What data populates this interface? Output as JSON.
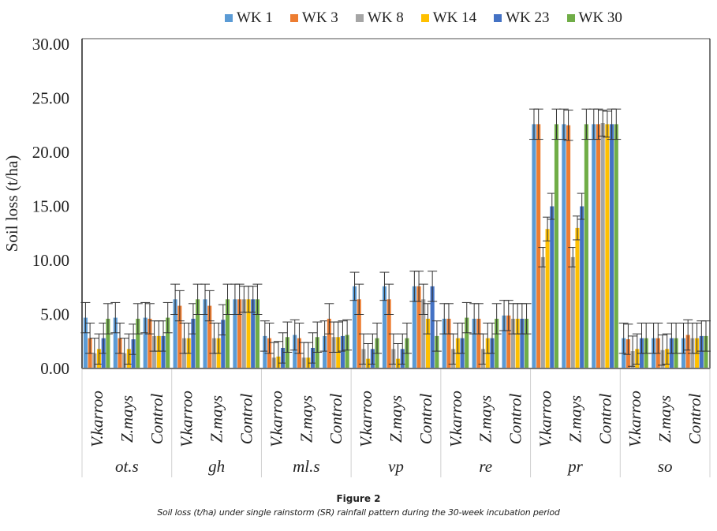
{
  "chart_data": {
    "type": "bar",
    "title": "",
    "xlabel": "",
    "ylabel": "Soil loss (t/ha)",
    "ylim": [
      0,
      30
    ],
    "yticks": [
      "0.00",
      "5.00",
      "10.00",
      "15.00",
      "20.00",
      "25.00",
      "30.00"
    ],
    "ytick_values": [
      0,
      5,
      10,
      15,
      20,
      25,
      30
    ],
    "grid": false,
    "legend_position": "top",
    "groups": [
      "ot.s",
      "gh",
      "ml.s",
      "vp",
      "re",
      "pr",
      "so"
    ],
    "subcategories": [
      "V.karroo",
      "Z.mays",
      "Control"
    ],
    "series": [
      {
        "name": "WK 1",
        "color": "#5b9bd5",
        "values": [
          [
            4.7,
            4.7,
            4.7
          ],
          [
            6.4,
            6.4,
            6.4
          ],
          [
            3.0,
            3.1,
            3.0
          ],
          [
            7.6,
            7.6,
            7.6
          ],
          [
            4.6,
            4.6,
            4.9
          ],
          [
            22.6,
            22.6,
            22.6
          ],
          [
            2.8,
            2.8,
            2.8
          ]
        ],
        "errors": [
          [
            1.4,
            1.4,
            1.4
          ],
          [
            1.4,
            1.4,
            1.4
          ],
          [
            1.4,
            1.4,
            1.4
          ],
          [
            1.3,
            1.3,
            1.4
          ],
          [
            1.4,
            1.4,
            1.4
          ],
          [
            1.4,
            1.4,
            1.4
          ],
          [
            1.4,
            1.4,
            1.4
          ]
        ]
      },
      {
        "name": "WK 3",
        "color": "#ed7d31",
        "values": [
          [
            2.8,
            2.8,
            4.6
          ],
          [
            5.8,
            5.8,
            6.4
          ],
          [
            2.8,
            2.8,
            4.6
          ],
          [
            6.4,
            6.4,
            7.6
          ],
          [
            4.6,
            4.6,
            4.9
          ],
          [
            22.6,
            22.5,
            22.6
          ],
          [
            2.7,
            2.8,
            3.1
          ]
        ],
        "errors": [
          [
            1.4,
            1.4,
            1.4
          ],
          [
            1.4,
            1.4,
            1.4
          ],
          [
            1.4,
            1.4,
            1.4
          ],
          [
            1.4,
            1.4,
            1.4
          ],
          [
            1.4,
            1.4,
            1.4
          ],
          [
            1.4,
            1.4,
            1.4
          ],
          [
            1.4,
            1.4,
            1.4
          ]
        ]
      },
      {
        "name": "WK 8",
        "color": "#a5a5a5",
        "values": [
          [
            1.4,
            1.4,
            3.0
          ],
          [
            2.8,
            2.8,
            6.4
          ],
          [
            1.0,
            1.0,
            2.9
          ],
          [
            1.8,
            1.8,
            6.4
          ],
          [
            1.8,
            1.8,
            4.6
          ],
          [
            10.3,
            10.3,
            22.7
          ],
          [
            1.6,
            1.7,
            2.8
          ]
        ],
        "errors": [
          [
            1.4,
            1.4,
            1.4
          ],
          [
            1.4,
            1.4,
            1.2
          ],
          [
            1.4,
            1.4,
            1.4
          ],
          [
            1.4,
            1.4,
            1.4
          ],
          [
            1.4,
            1.4,
            1.4
          ],
          [
            0.9,
            0.9,
            1.2
          ],
          [
            1.4,
            1.4,
            1.4
          ]
        ]
      },
      {
        "name": "WK 14",
        "color": "#ffc000",
        "values": [
          [
            1.8,
            1.8,
            3.0
          ],
          [
            2.8,
            2.8,
            6.4
          ],
          [
            1.1,
            1.0,
            2.9
          ],
          [
            0.9,
            0.9,
            4.6
          ],
          [
            2.8,
            2.8,
            4.6
          ],
          [
            12.9,
            13.0,
            22.6
          ],
          [
            1.8,
            1.8,
            2.8
          ]
        ],
        "errors": [
          [
            1.4,
            1.4,
            1.4
          ],
          [
            1.4,
            1.4,
            1.2
          ],
          [
            1.4,
            1.4,
            1.4
          ],
          [
            1.4,
            1.4,
            1.4
          ],
          [
            1.4,
            1.4,
            1.4
          ],
          [
            1.1,
            1.1,
            1.2
          ],
          [
            1.4,
            1.4,
            1.4
          ]
        ]
      },
      {
        "name": "WK 23",
        "color": "#4472c4",
        "values": [
          [
            2.8,
            2.7,
            3.0
          ],
          [
            4.6,
            4.5,
            6.4
          ],
          [
            1.9,
            1.9,
            3.0
          ],
          [
            1.8,
            1.8,
            7.6
          ],
          [
            2.8,
            2.8,
            4.6
          ],
          [
            15.0,
            15.0,
            22.6
          ],
          [
            2.8,
            2.8,
            3.0
          ]
        ],
        "errors": [
          [
            1.4,
            1.4,
            1.4
          ],
          [
            1.4,
            1.4,
            1.2
          ],
          [
            1.4,
            1.4,
            1.4
          ],
          [
            1.4,
            1.4,
            1.4
          ],
          [
            1.4,
            1.4,
            1.4
          ],
          [
            1.2,
            1.2,
            1.4
          ],
          [
            1.4,
            1.4,
            1.4
          ]
        ]
      },
      {
        "name": "WK 30",
        "color": "#70ad47",
        "values": [
          [
            4.6,
            4.6,
            4.7
          ],
          [
            6.4,
            6.4,
            6.4
          ],
          [
            2.9,
            2.9,
            3.1
          ],
          [
            2.8,
            2.8,
            3.0
          ],
          [
            4.7,
            4.6,
            4.6
          ],
          [
            22.6,
            22.6,
            22.6
          ],
          [
            2.8,
            2.8,
            3.0
          ]
        ],
        "errors": [
          [
            1.4,
            1.4,
            1.4
          ],
          [
            1.4,
            1.4,
            1.4
          ],
          [
            1.4,
            1.4,
            1.4
          ],
          [
            1.4,
            1.4,
            1.4
          ],
          [
            1.4,
            1.4,
            1.4
          ],
          [
            1.4,
            1.4,
            1.4
          ],
          [
            1.4,
            1.4,
            1.4
          ]
        ]
      }
    ]
  },
  "caption": {
    "title": "Figure 2",
    "text": "Soil loss (t/ha) under single rainstorm (SR) rainfall pattern during the 30-week incubation period"
  }
}
